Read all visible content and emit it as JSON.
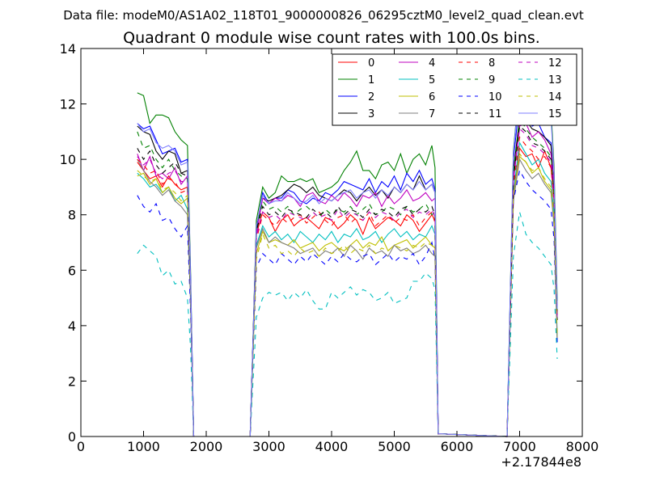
{
  "chart_data": {
    "type": "line",
    "suptitle": "Data file: modeM0/AS1A02_118T01_9000000826_06295cztM0_level2_quad_clean.evt",
    "title": "Quadrant 0 module wise count rates with 100.0s bins.",
    "xlabel": "",
    "ylabel": "",
    "x_offset_label": "+2.17844e8",
    "xlim": [
      0,
      8000
    ],
    "ylim": [
      0,
      14
    ],
    "xticks": [
      0,
      1000,
      2000,
      3000,
      4000,
      5000,
      6000,
      7000,
      8000
    ],
    "yticks": [
      0,
      2,
      4,
      6,
      8,
      10,
      12,
      14
    ],
    "grid": false,
    "legend_placement": "top-right",
    "x": [
      900,
      1000,
      1100,
      1200,
      1300,
      1400,
      1500,
      1600,
      1700,
      1750,
      1800,
      2700,
      2800,
      2900,
      3000,
      3100,
      3200,
      3300,
      3400,
      3500,
      3600,
      3700,
      3800,
      3900,
      4000,
      4100,
      4200,
      4300,
      4400,
      4500,
      4600,
      4700,
      4800,
      4900,
      5000,
      5100,
      5200,
      5300,
      5400,
      5500,
      5600,
      5650,
      5700,
      6800,
      6900,
      7000,
      7100,
      7200,
      7300,
      7400,
      7500,
      7550,
      7600
    ],
    "series": [
      {
        "name": "0",
        "color": "#ff0000",
        "dash": "solid",
        "values": [
          9.9,
          9.6,
          9.3,
          9.4,
          9.0,
          9.4,
          9.1,
          8.9,
          9.0,
          5.5,
          0,
          0,
          7.3,
          8.1,
          7.9,
          7.4,
          7.8,
          8.0,
          7.6,
          7.8,
          7.9,
          7.7,
          7.5,
          7.9,
          7.8,
          7.5,
          7.7,
          8.0,
          7.8,
          7.3,
          7.9,
          7.5,
          7.7,
          7.9,
          7.8,
          7.6,
          8.0,
          7.8,
          7.4,
          7.7,
          8.0,
          7.8,
          0.1,
          0,
          8.8,
          10.4,
          10.1,
          10.2,
          9.7,
          10.3,
          9.7,
          8.5,
          4.5
        ]
      },
      {
        "name": "1",
        "color": "#008000",
        "dash": "solid",
        "values": [
          12.4,
          12.3,
          11.3,
          11.6,
          11.6,
          11.5,
          11.0,
          10.7,
          10.5,
          6.0,
          0,
          0,
          7.8,
          9.0,
          8.6,
          8.8,
          9.4,
          9.2,
          9.2,
          9.3,
          9.2,
          9.3,
          8.8,
          8.9,
          9.0,
          9.2,
          9.6,
          9.9,
          10.3,
          9.6,
          9.6,
          9.3,
          9.8,
          9.9,
          9.6,
          10.2,
          9.5,
          10.0,
          10.2,
          9.8,
          10.5,
          9.7,
          0.1,
          0,
          10.3,
          12.8,
          12.9,
          12.6,
          12.0,
          11.4,
          11.8,
          9.7,
          4.9
        ]
      },
      {
        "name": "2",
        "color": "#0000ff",
        "dash": "solid",
        "values": [
          11.3,
          11.1,
          11.2,
          10.7,
          10.2,
          10.3,
          10.4,
          9.9,
          10.0,
          5.8,
          0,
          0,
          7.5,
          8.8,
          8.4,
          8.6,
          8.6,
          8.9,
          8.8,
          8.5,
          8.4,
          8.6,
          8.5,
          8.8,
          8.7,
          8.9,
          9.2,
          9.1,
          9.0,
          8.9,
          9.3,
          8.8,
          9.2,
          9.0,
          9.4,
          8.9,
          9.5,
          9.2,
          9.6,
          9.1,
          9.3,
          8.9,
          0.1,
          0,
          10.0,
          12.1,
          11.6,
          11.2,
          11.3,
          10.8,
          10.6,
          9.0,
          4.5
        ]
      },
      {
        "name": "3",
        "color": "#000000",
        "dash": "solid",
        "values": [
          11.2,
          11.0,
          10.9,
          10.3,
          10.0,
          10.3,
          10.2,
          9.5,
          9.6,
          5.5,
          0,
          0,
          7.6,
          8.6,
          8.5,
          8.6,
          8.7,
          8.9,
          9.1,
          9.0,
          8.8,
          9.0,
          8.7,
          8.6,
          8.5,
          8.7,
          8.9,
          8.8,
          8.5,
          8.8,
          9.0,
          8.7,
          8.9,
          8.6,
          9.0,
          8.8,
          9.1,
          8.9,
          9.4,
          8.9,
          9.1,
          8.8,
          0.1,
          0,
          9.6,
          11.5,
          11.4,
          11.1,
          11.0,
          10.8,
          10.5,
          8.9,
          4.2
        ]
      },
      {
        "name": "4",
        "color": "#bf00bf",
        "dash": "solid",
        "values": [
          10.2,
          9.6,
          10.1,
          9.4,
          9.5,
          9.3,
          9.7,
          9.1,
          9.4,
          5.4,
          0,
          0,
          7.3,
          8.6,
          8.4,
          8.6,
          8.5,
          8.7,
          8.6,
          8.3,
          8.7,
          8.8,
          8.5,
          8.4,
          8.7,
          8.5,
          8.8,
          8.6,
          8.3,
          8.7,
          8.6,
          8.8,
          8.3,
          8.7,
          8.4,
          8.6,
          8.9,
          8.5,
          8.6,
          8.8,
          8.5,
          8.6,
          0.1,
          0,
          9.3,
          11.2,
          11.3,
          10.8,
          11.0,
          10.7,
          10.2,
          9.1,
          4.3
        ]
      },
      {
        "name": "5",
        "color": "#00bfbf",
        "dash": "solid",
        "values": [
          9.5,
          9.3,
          9.0,
          9.1,
          8.8,
          9.0,
          8.5,
          8.7,
          8.2,
          5.0,
          0,
          0,
          6.9,
          7.6,
          7.2,
          7.4,
          7.1,
          7.3,
          7.0,
          7.4,
          7.2,
          7.0,
          7.3,
          7.1,
          7.4,
          7.0,
          7.3,
          7.2,
          7.5,
          7.1,
          7.2,
          7.4,
          7.0,
          7.3,
          7.5,
          7.2,
          7.4,
          7.1,
          7.3,
          7.2,
          7.6,
          7.3,
          0.1,
          0,
          8.8,
          10.6,
          10.2,
          9.8,
          10.0,
          9.5,
          9.2,
          8.0,
          3.6
        ]
      },
      {
        "name": "6",
        "color": "#bfbf00",
        "dash": "solid",
        "values": [
          9.4,
          9.5,
          9.1,
          9.3,
          8.8,
          9.0,
          8.6,
          8.4,
          8.6,
          5.0,
          0,
          0,
          6.6,
          7.4,
          7.0,
          7.1,
          7.0,
          6.9,
          7.1,
          6.8,
          6.9,
          7.0,
          6.7,
          6.9,
          7.0,
          6.8,
          6.7,
          6.9,
          7.1,
          6.8,
          7.0,
          6.9,
          7.2,
          6.7,
          6.9,
          7.0,
          7.1,
          6.8,
          7.0,
          7.2,
          6.9,
          6.8,
          0.1,
          0,
          8.6,
          10.1,
          9.9,
          9.5,
          9.7,
          9.2,
          8.9,
          7.7,
          3.5
        ]
      },
      {
        "name": "7",
        "color": "#7f7f7f",
        "dash": "solid",
        "values": [
          10.0,
          9.6,
          9.2,
          9.0,
          8.7,
          8.9,
          8.5,
          8.3,
          8.0,
          4.9,
          0,
          0,
          6.8,
          7.5,
          7.0,
          7.2,
          7.0,
          6.9,
          6.8,
          6.6,
          6.7,
          6.8,
          6.5,
          6.7,
          6.6,
          6.8,
          6.5,
          6.9,
          6.7,
          6.4,
          6.8,
          6.6,
          6.7,
          6.5,
          6.9,
          6.7,
          6.8,
          6.6,
          6.7,
          6.9,
          6.6,
          6.5,
          0.1,
          0,
          8.5,
          10.0,
          9.6,
          9.3,
          9.5,
          9.1,
          8.8,
          7.6,
          3.4
        ]
      },
      {
        "name": "8",
        "color": "#ff0000",
        "dash": "dashed",
        "values": [
          10.0,
          9.8,
          9.5,
          9.6,
          9.1,
          9.3,
          9.2,
          8.8,
          8.9,
          5.4,
          0,
          0,
          7.1,
          8.0,
          7.8,
          7.6,
          7.9,
          7.7,
          7.9,
          8.0,
          7.7,
          7.9,
          8.1,
          7.8,
          7.6,
          7.9,
          8.0,
          7.7,
          7.9,
          7.8,
          8.1,
          7.6,
          7.8,
          8.0,
          7.7,
          7.9,
          7.8,
          8.0,
          7.6,
          7.9,
          8.1,
          7.7,
          0.1,
          0,
          9.0,
          10.8,
          10.5,
          10.3,
          10.0,
          10.1,
          9.7,
          8.4,
          4.3
        ]
      },
      {
        "name": "9",
        "color": "#008000",
        "dash": "dashed",
        "values": [
          11.0,
          10.4,
          10.5,
          10.0,
          9.7,
          10.0,
          9.6,
          9.4,
          9.3,
          5.5,
          0,
          0,
          7.4,
          8.5,
          8.2,
          8.3,
          8.1,
          8.3,
          8.0,
          8.2,
          8.3,
          8.1,
          7.9,
          8.2,
          8.0,
          8.2,
          8.1,
          8.3,
          8.0,
          8.2,
          8.4,
          8.0,
          8.1,
          8.3,
          8.2,
          8.0,
          8.3,
          8.1,
          8.2,
          8.4,
          8.0,
          8.1,
          0.1,
          0,
          9.5,
          11.5,
          11.1,
          10.8,
          10.6,
          10.4,
          10.1,
          8.7,
          4.4
        ]
      },
      {
        "name": "10",
        "color": "#0000ff",
        "dash": "dashed",
        "values": [
          8.7,
          8.3,
          8.1,
          8.4,
          7.8,
          7.9,
          7.5,
          7.2,
          7.6,
          4.5,
          0,
          0,
          6.1,
          6.6,
          6.4,
          6.2,
          6.6,
          6.4,
          6.2,
          6.5,
          6.3,
          6.6,
          6.4,
          6.2,
          6.5,
          6.3,
          6.6,
          6.4,
          6.3,
          6.5,
          6.6,
          6.2,
          6.4,
          6.6,
          6.3,
          6.5,
          6.4,
          6.6,
          6.2,
          6.5,
          7.0,
          6.4,
          0.1,
          0,
          8.5,
          9.6,
          9.2,
          8.9,
          8.7,
          8.5,
          8.2,
          7.1,
          3.4
        ]
      },
      {
        "name": "11",
        "color": "#000000",
        "dash": "dashed",
        "values": [
          10.4,
          10.0,
          10.3,
          9.8,
          9.5,
          9.7,
          9.9,
          9.5,
          9.4,
          5.5,
          0,
          0,
          7.4,
          8.3,
          8.0,
          8.1,
          7.9,
          8.2,
          8.1,
          8.0,
          7.9,
          8.2,
          8.0,
          8.1,
          7.9,
          8.3,
          8.0,
          8.2,
          8.1,
          7.9,
          8.2,
          8.0,
          8.2,
          8.1,
          7.9,
          8.2,
          8.3,
          8.0,
          8.2,
          8.1,
          8.3,
          8.0,
          0.1,
          0,
          9.3,
          11.2,
          11.0,
          10.6,
          10.5,
          10.3,
          10.0,
          8.7,
          4.3
        ]
      },
      {
        "name": "12",
        "color": "#bf00bf",
        "dash": "dashed",
        "values": [
          10.1,
          9.8,
          10.0,
          9.5,
          9.3,
          9.5,
          9.6,
          9.2,
          9.2,
          5.3,
          0,
          0,
          7.2,
          8.1,
          7.9,
          8.0,
          7.8,
          8.1,
          8.0,
          7.9,
          7.8,
          8.1,
          7.9,
          8.0,
          7.8,
          8.2,
          7.9,
          8.1,
          8.0,
          7.8,
          8.1,
          7.9,
          8.1,
          8.0,
          7.8,
          8.1,
          8.2,
          7.9,
          8.1,
          8.0,
          8.2,
          7.9,
          0.1,
          0,
          9.2,
          11.1,
          10.9,
          10.5,
          10.4,
          10.2,
          9.9,
          8.6,
          4.2
        ]
      },
      {
        "name": "13",
        "color": "#00bfbf",
        "dash": "dashed",
        "values": [
          6.6,
          6.9,
          6.7,
          6.5,
          5.8,
          6.0,
          5.5,
          5.6,
          5.0,
          3.2,
          0,
          0,
          4.3,
          5.0,
          5.2,
          5.1,
          5.2,
          4.9,
          5.2,
          5.0,
          5.3,
          4.9,
          4.6,
          4.6,
          5.2,
          5.0,
          5.2,
          5.4,
          5.1,
          5.3,
          5.2,
          4.9,
          5.0,
          5.2,
          4.8,
          4.9,
          5.0,
          5.6,
          5.6,
          5.9,
          5.7,
          5.3,
          0.1,
          0,
          6.5,
          8.1,
          7.3,
          7.0,
          6.8,
          6.5,
          6.2,
          5.3,
          2.8
        ]
      },
      {
        "name": "14",
        "color": "#bfbf00",
        "dash": "dashed",
        "values": [
          9.6,
          9.4,
          9.2,
          9.3,
          8.9,
          9.0,
          8.8,
          8.5,
          8.7,
          5.1,
          0,
          0,
          6.4,
          7.3,
          6.8,
          6.9,
          6.6,
          6.7,
          6.5,
          6.8,
          6.6,
          6.7,
          6.5,
          6.8,
          6.6,
          6.7,
          6.9,
          6.6,
          6.8,
          6.7,
          6.9,
          6.6,
          6.8,
          6.7,
          6.9,
          6.8,
          6.7,
          6.9,
          6.8,
          7.0,
          6.9,
          6.7,
          0.1,
          0,
          8.7,
          10.2,
          9.9,
          9.6,
          9.7,
          9.3,
          9.0,
          7.9,
          3.6
        ]
      },
      {
        "name": "15",
        "color": "#7f7fff",
        "dash": "solid",
        "values": [
          11.3,
          11.0,
          11.1,
          10.6,
          10.4,
          10.5,
          10.3,
          9.8,
          9.9,
          5.7,
          0,
          0,
          7.6,
          8.7,
          8.4,
          8.5,
          8.5,
          8.8,
          8.6,
          8.4,
          8.5,
          8.7,
          8.4,
          8.6,
          8.5,
          8.7,
          8.8,
          8.9,
          8.6,
          8.8,
          8.9,
          8.6,
          8.9,
          8.7,
          9.0,
          8.8,
          9.1,
          8.9,
          9.2,
          8.9,
          9.1,
          8.8,
          0.1,
          0,
          10.2,
          12.8,
          12.5,
          12.1,
          12.3,
          11.8,
          11.5,
          9.5,
          4.6
        ]
      }
    ]
  }
}
